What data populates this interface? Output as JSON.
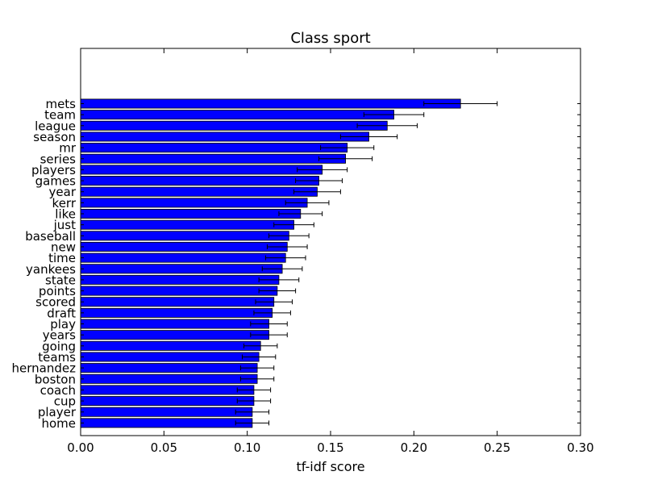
{
  "chart_data": {
    "type": "bar",
    "orientation": "horizontal",
    "title": "Class sport",
    "xlabel": "tf-idf score",
    "ylabel": "",
    "xlim": [
      0.0,
      0.3
    ],
    "xticks": [
      "0.00",
      "0.05",
      "0.10",
      "0.15",
      "0.20",
      "0.25",
      "0.30"
    ],
    "xtick_values": [
      0.0,
      0.05,
      0.1,
      0.15,
      0.2,
      0.25,
      0.3
    ],
    "grid": false,
    "bar_color": "#0000ff",
    "categories": [
      "mets",
      "team",
      "league",
      "season",
      "mr",
      "series",
      "players",
      "games",
      "year",
      "kerr",
      "like",
      "just",
      "baseball",
      "new",
      "time",
      "yankees",
      "state",
      "points",
      "scored",
      "draft",
      "play",
      "years",
      "going",
      "teams",
      "hernandez",
      "boston",
      "coach",
      "cup",
      "player",
      "home"
    ],
    "values": [
      0.228,
      0.188,
      0.184,
      0.173,
      0.16,
      0.159,
      0.145,
      0.143,
      0.142,
      0.136,
      0.132,
      0.128,
      0.125,
      0.124,
      0.123,
      0.121,
      0.119,
      0.118,
      0.116,
      0.115,
      0.113,
      0.113,
      0.108,
      0.107,
      0.106,
      0.106,
      0.104,
      0.104,
      0.103,
      0.103
    ],
    "errors": [
      0.022,
      0.018,
      0.018,
      0.017,
      0.016,
      0.016,
      0.015,
      0.014,
      0.014,
      0.013,
      0.013,
      0.012,
      0.012,
      0.012,
      0.012,
      0.012,
      0.012,
      0.011,
      0.011,
      0.011,
      0.011,
      0.011,
      0.01,
      0.01,
      0.01,
      0.01,
      0.01,
      0.01,
      0.01,
      0.01
    ]
  }
}
